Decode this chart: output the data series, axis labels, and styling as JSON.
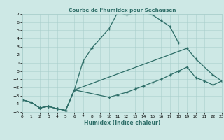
{
  "title": "Courbe de l'humidex pour Seehausen",
  "xlabel": "Humidex (Indice chaleur)",
  "xlim": [
    0,
    23
  ],
  "ylim": [
    -5,
    7
  ],
  "xticks": [
    0,
    1,
    2,
    3,
    4,
    5,
    6,
    7,
    8,
    9,
    10,
    11,
    12,
    13,
    14,
    15,
    16,
    17,
    18,
    19,
    20,
    21,
    22,
    23
  ],
  "yticks": [
    -5,
    -4,
    -3,
    -2,
    -1,
    0,
    1,
    2,
    3,
    4,
    5,
    6,
    7
  ],
  "bg_color": "#cde8e5",
  "grid_color": "#aacfcc",
  "line_color": "#2e6e68",
  "curve1_x": [
    0,
    1,
    2,
    3,
    4,
    5,
    6,
    7,
    8,
    10,
    11,
    12,
    13,
    14,
    15,
    16,
    17,
    18
  ],
  "curve1_y": [
    -3.5,
    -3.8,
    -4.5,
    -4.3,
    -4.6,
    -4.8,
    -2.3,
    1.2,
    2.8,
    5.2,
    7.2,
    6.9,
    7.1,
    7.2,
    6.9,
    6.2,
    5.5,
    3.5
  ],
  "curve2_x": [
    0,
    1,
    2,
    3,
    4,
    5,
    6,
    19,
    20,
    22,
    23
  ],
  "curve2_y": [
    -3.5,
    -3.8,
    -4.5,
    -4.3,
    -4.6,
    -4.8,
    -2.3,
    2.8,
    1.5,
    -0.5,
    -1.2
  ],
  "curve3_x": [
    0,
    1,
    2,
    3,
    4,
    5,
    6,
    10,
    11,
    12,
    13,
    14,
    15,
    16,
    17,
    18,
    19,
    20,
    21,
    22,
    23
  ],
  "curve3_y": [
    -3.5,
    -3.8,
    -4.5,
    -4.3,
    -4.6,
    -4.8,
    -2.3,
    -3.2,
    -2.9,
    -2.6,
    -2.2,
    -1.8,
    -1.4,
    -1.0,
    -0.5,
    0.0,
    0.5,
    -0.8,
    -1.2,
    -1.7,
    -1.2
  ]
}
